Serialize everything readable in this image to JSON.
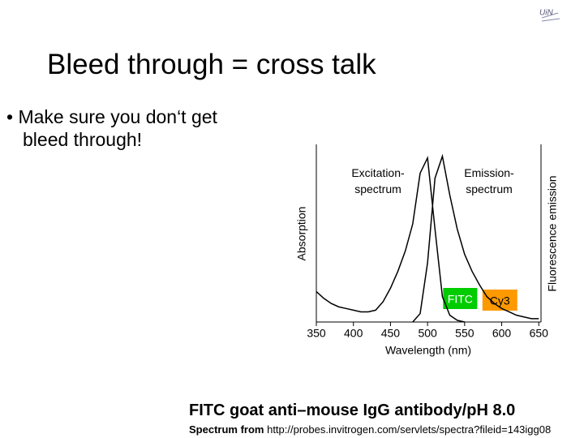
{
  "slide": {
    "title": "Bleed through = cross talk",
    "bullet": "Make sure you don‘t get bleed through!",
    "caption": "FITC goat anti–mouse IgG antibody/pH 8.0",
    "source_label": "Spectrum from",
    "source_url": "http://probes.invitrogen.com/servlets/spectra?fileid=143igg08"
  },
  "chart_data": {
    "type": "line",
    "x_label": "Wavelength (nm)",
    "y_label": "Absorption",
    "y2_label": "Fluorescence emission",
    "x": [
      350,
      360,
      370,
      380,
      390,
      400,
      410,
      420,
      430,
      440,
      450,
      460,
      470,
      480,
      490,
      500,
      510,
      520,
      530,
      540,
      550,
      560,
      570,
      580,
      590,
      600,
      610,
      620,
      630,
      640,
      650
    ],
    "series": [
      {
        "name": "Excitation- spectrum",
        "color": "#000000",
        "values": [
          0.18,
          0.14,
          0.11,
          0.09,
          0.08,
          0.07,
          0.06,
          0.06,
          0.07,
          0.12,
          0.2,
          0.3,
          0.42,
          0.58,
          0.88,
          0.97,
          0.55,
          0.15,
          0.04,
          0.01,
          0,
          null,
          null,
          null,
          null,
          null,
          null,
          null,
          null,
          null,
          null
        ]
      },
      {
        "name": "Emission- spectrum",
        "color": "#000000",
        "axis": "y2",
        "values": [
          null,
          null,
          null,
          null,
          null,
          null,
          null,
          null,
          null,
          null,
          null,
          null,
          null,
          0,
          0.05,
          0.35,
          0.85,
          0.98,
          0.75,
          0.55,
          0.4,
          0.3,
          0.22,
          0.15,
          0.11,
          0.08,
          0.06,
          0.04,
          0.03,
          0.02,
          0.02
        ]
      }
    ],
    "xlim": [
      350,
      653
    ],
    "xticks": [
      350,
      400,
      450,
      500,
      550,
      600,
      650
    ],
    "ylim": [
      0,
      1.05
    ],
    "y2lim": [
      0,
      1.05
    ],
    "bands": [
      {
        "label": "FITC",
        "color": "#00cc00",
        "range": [
          521,
          567
        ]
      },
      {
        "label": "Cy3",
        "color": "#ff9900",
        "range": [
          574,
          621
        ]
      }
    ]
  }
}
